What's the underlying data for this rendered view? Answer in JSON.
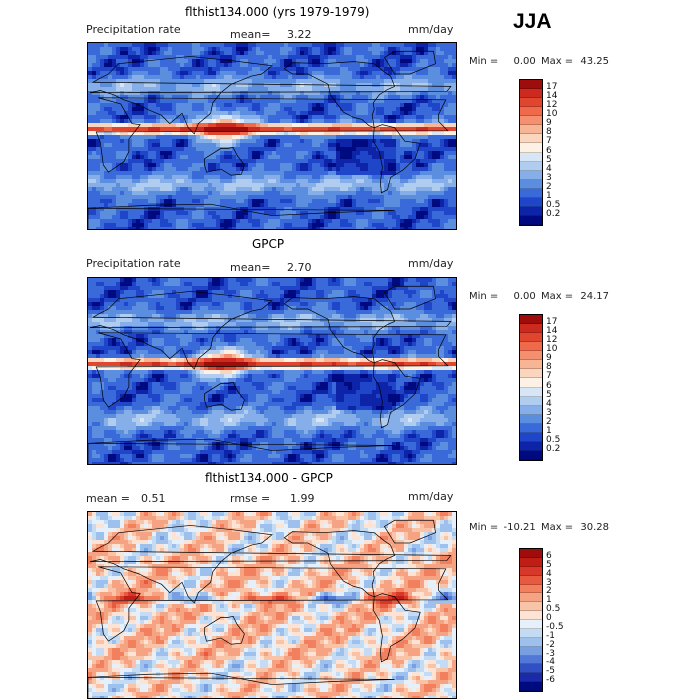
{
  "season": "JJA",
  "panels": [
    {
      "title": "flthist134.000 (yrs 1979-1979)",
      "left_label": "Precipitation rate",
      "mean_label": "mean=",
      "mean_value": "3.22",
      "units": "mm/day",
      "min_label": "Min =",
      "min_value": "0.00",
      "max_label": "Max =",
      "max_value": "43.25",
      "levels": [
        "17",
        "14",
        "12",
        "10",
        "9",
        "8",
        "7",
        "6",
        "5",
        "4",
        "3",
        "2",
        "1",
        "0.5",
        "0.2"
      ],
      "colors": [
        "#9e0c0c",
        "#cc2a1e",
        "#e0452e",
        "#ef6a4a",
        "#f4906f",
        "#f8b596",
        "#fbd6bf",
        "#fdf0e4",
        "#d6e6f7",
        "#b0cdf0",
        "#86aee8",
        "#5c8ee0",
        "#3a6ad9",
        "#1f45c8",
        "#0d23a8",
        "#000a80"
      ],
      "map_type": "precip"
    },
    {
      "title": "GPCP",
      "left_label": "Precipitation rate",
      "mean_label": "mean=",
      "mean_value": "2.70",
      "units": "mm/day",
      "min_label": "Min =",
      "min_value": "0.00",
      "max_label": "Max =",
      "max_value": "24.17",
      "levels": [
        "17",
        "14",
        "12",
        "10",
        "9",
        "8",
        "7",
        "6",
        "5",
        "4",
        "3",
        "2",
        "1",
        "0.5",
        "0.2"
      ],
      "colors": [
        "#9e0c0c",
        "#cc2a1e",
        "#e0452e",
        "#ef6a4a",
        "#f4906f",
        "#f8b596",
        "#fbd6bf",
        "#fdf0e4",
        "#d6e6f7",
        "#b0cdf0",
        "#86aee8",
        "#5c8ee0",
        "#3a6ad9",
        "#1f45c8",
        "#0d23a8",
        "#000a80"
      ],
      "map_type": "precip"
    },
    {
      "title": "flthist134.000 - GPCP",
      "left_label": "mean =",
      "mean_value_left": "0.51",
      "rmse_label": "rmse =",
      "rmse_value": "1.99",
      "units": "mm/day",
      "min_label": "Min =",
      "min_value": "-10.21",
      "max_label": "Max =",
      "max_value": "30.28",
      "levels": [
        "6",
        "5",
        "4",
        "3",
        "2",
        "1",
        "0.5",
        "0",
        "-0.5",
        "-1",
        "-2",
        "-3",
        "-4",
        "-5",
        "-6"
      ],
      "colors": [
        "#9e0c0c",
        "#c01e14",
        "#d8382a",
        "#e85a3f",
        "#f2805f",
        "#f6a383",
        "#f9c3a8",
        "#fde3d3",
        "#e6f0fa",
        "#c4dbf4",
        "#9ec0ec",
        "#779fe2",
        "#5178d6",
        "#3150c4",
        "#1a2aa8",
        "#000a80"
      ],
      "map_type": "diff"
    }
  ]
}
